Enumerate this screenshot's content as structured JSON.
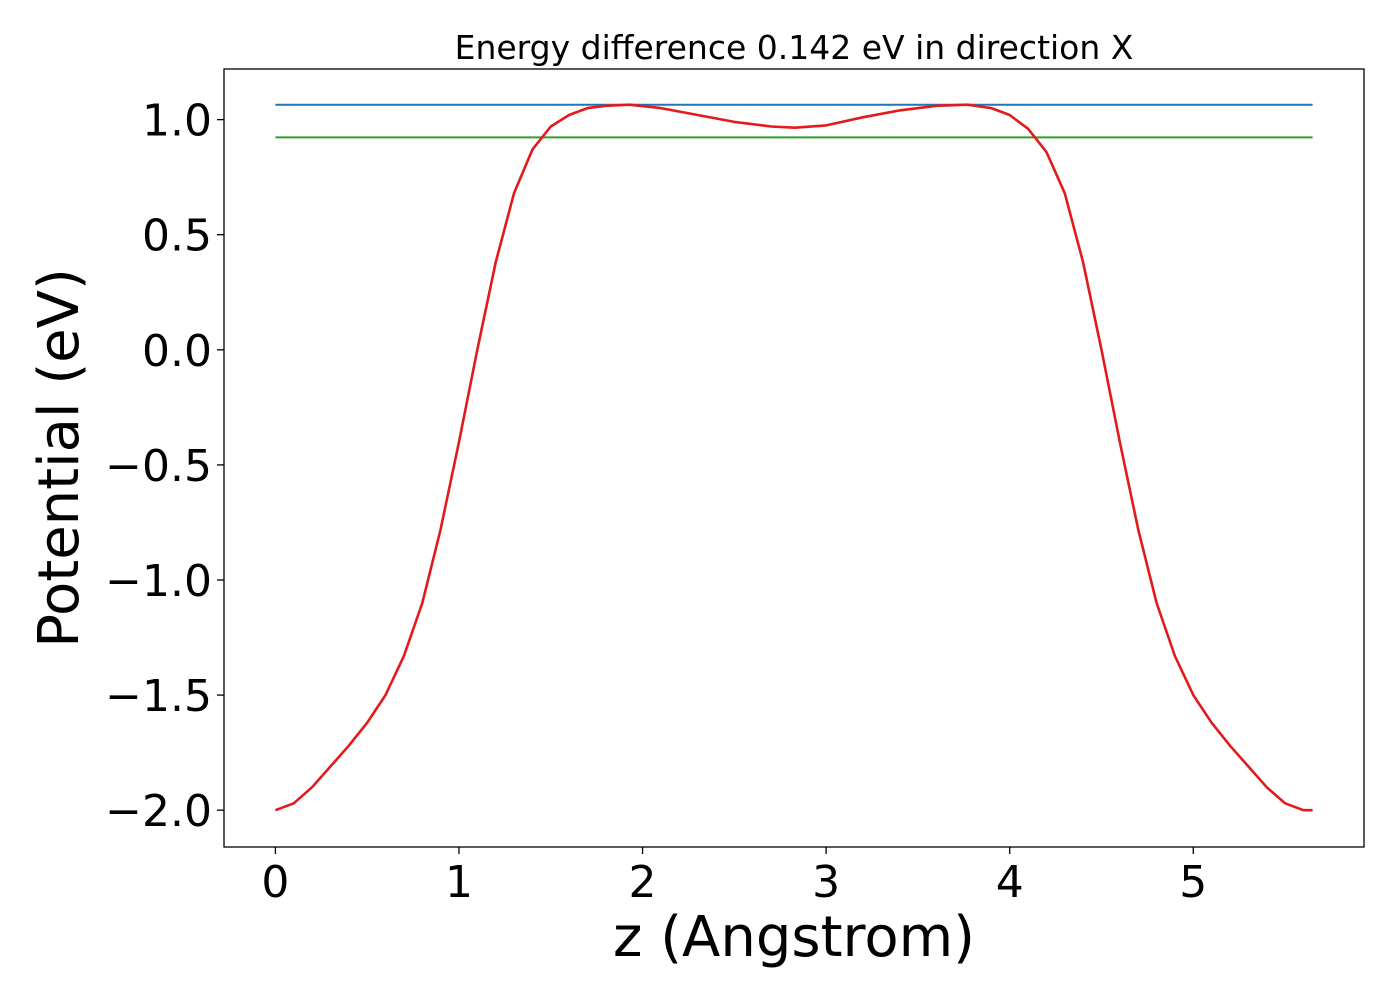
{
  "chart_data": {
    "type": "line",
    "title": "Energy difference 0.142 eV in direction X",
    "xlabel": "z (Angstrom)",
    "ylabel": "Potential (eV)",
    "xlim": [
      -0.28,
      5.93
    ],
    "ylim": [
      -2.16,
      1.22
    ],
    "xticks": [
      0,
      1,
      2,
      3,
      4,
      5
    ],
    "xtick_labels": [
      "0",
      "1",
      "2",
      "3",
      "4",
      "5"
    ],
    "yticks": [
      -2.0,
      -1.5,
      -1.0,
      -0.5,
      0.0,
      0.5,
      1.0
    ],
    "ytick_labels": [
      "−2.0",
      "−1.5",
      "−1.0",
      "−0.5",
      "0.0",
      "0.5",
      "1.0"
    ],
    "grid": false,
    "series": [
      {
        "kind": "hline",
        "color": "#1f77b4",
        "x": [
          0,
          5.65
        ],
        "y": [
          1.065,
          1.065
        ]
      },
      {
        "kind": "hline",
        "color": "#2ca02c",
        "x": [
          0,
          5.65
        ],
        "y": [
          0.923,
          0.923
        ]
      },
      {
        "kind": "curve",
        "color": "#e31a1c",
        "x": [
          0.0,
          0.1,
          0.2,
          0.3,
          0.4,
          0.5,
          0.6,
          0.7,
          0.8,
          0.9,
          1.0,
          1.1,
          1.2,
          1.3,
          1.4,
          1.5,
          1.6,
          1.7,
          1.8,
          1.93,
          2.1,
          2.3,
          2.5,
          2.7,
          2.83,
          3.0,
          3.2,
          3.4,
          3.6,
          3.77,
          3.9,
          4.0,
          4.1,
          4.2,
          4.3,
          4.4,
          4.5,
          4.6,
          4.7,
          4.8,
          4.9,
          5.0,
          5.1,
          5.2,
          5.3,
          5.4,
          5.5,
          5.6,
          5.65
        ],
        "y": [
          -2.0,
          -1.97,
          -1.9,
          -1.81,
          -1.72,
          -1.62,
          -1.5,
          -1.33,
          -1.1,
          -0.78,
          -0.4,
          0.0,
          0.38,
          0.68,
          0.87,
          0.97,
          1.02,
          1.05,
          1.06,
          1.065,
          1.05,
          1.02,
          0.99,
          0.97,
          0.965,
          0.975,
          1.01,
          1.04,
          1.06,
          1.065,
          1.05,
          1.02,
          0.96,
          0.86,
          0.68,
          0.38,
          0.0,
          -0.4,
          -0.78,
          -1.1,
          -1.33,
          -1.5,
          -1.62,
          -1.72,
          -1.81,
          -1.9,
          -1.97,
          -2.0,
          -2.0
        ]
      }
    ]
  }
}
